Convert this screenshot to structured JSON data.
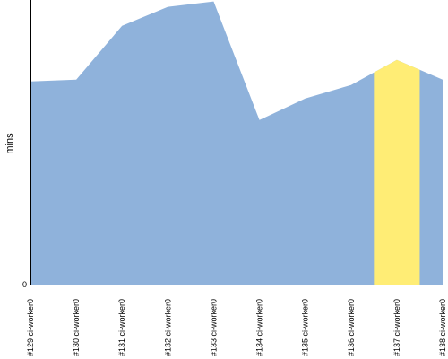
{
  "chart_data": {
    "type": "area",
    "title": "",
    "xlabel": "",
    "ylabel": "mins",
    "categories": [
      "#129 ci-worker0",
      "#130 ci-worker0",
      "#131 ci-worker0",
      "#132 ci-worker0",
      "#133 ci-worker0",
      "#134 ci-worker0",
      "#135 ci-worker0",
      "#136 ci-worker0",
      "#137 ci-worker0",
      "#138 ci-worker0"
    ],
    "series": [
      {
        "values": [
          67.8,
          68.4,
          86.4,
          92.7,
          94.5,
          54.9,
          62.1,
          66.6,
          75.0,
          68.4
        ],
        "color": "#8fb2db"
      }
    ],
    "highlight": {
      "category": "#137 ci-worker0",
      "color": "#ffed75"
    },
    "y_tick_labels": [
      "0"
    ],
    "ylim": [
      0,
      95
    ],
    "grid": false,
    "legend": "none"
  }
}
